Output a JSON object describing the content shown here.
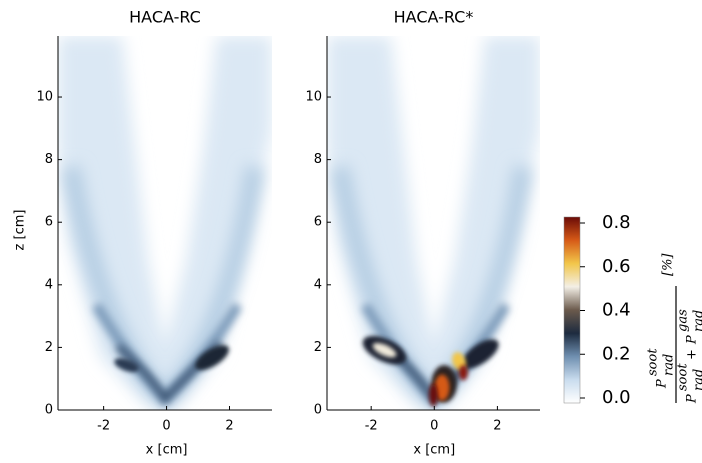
{
  "chart_data": [
    {
      "type": "contour",
      "title": "HACA-RC",
      "xlabel": "x [cm]",
      "ylabel": "z [cm]",
      "xlim": [
        -3.45,
        3.35
      ],
      "ylim": [
        0,
        11.95
      ],
      "xticks": [
        -2,
        0,
        2
      ],
      "yticks": [
        0,
        2,
        4,
        6,
        8,
        10
      ]
    },
    {
      "type": "contour",
      "title": "HACA-RC*",
      "xlabel": "x [cm]",
      "xlim": [
        -3.4,
        3.35
      ],
      "ylim": [
        0,
        11.95
      ],
      "xticks": [
        -2,
        0,
        2
      ],
      "yticks": [
        0,
        2,
        4,
        6,
        8,
        10
      ]
    }
  ],
  "colorbar": {
    "lim": [
      0,
      0.8
    ],
    "ticks": [
      {
        "value": 0,
        "label": "0.0"
      },
      {
        "value": 0.2,
        "label": "0.2"
      },
      {
        "value": 0.4,
        "label": "0.4"
      },
      {
        "value": 0.6,
        "label": "0.6"
      },
      {
        "value": 0.8,
        "label": "0.8"
      }
    ],
    "colormap": [
      "#ffffff",
      "#c9dcee",
      "#6f8fb0",
      "#1d2b3f",
      "#6b5a4c",
      "#f3efe6",
      "#f2c64a",
      "#d65a17",
      "#6a0b07"
    ],
    "label": {
      "symbol": "P",
      "sub": "rad",
      "soot": "soot",
      "gas": "gas",
      "plus": "+",
      "unit": "[%]"
    }
  }
}
